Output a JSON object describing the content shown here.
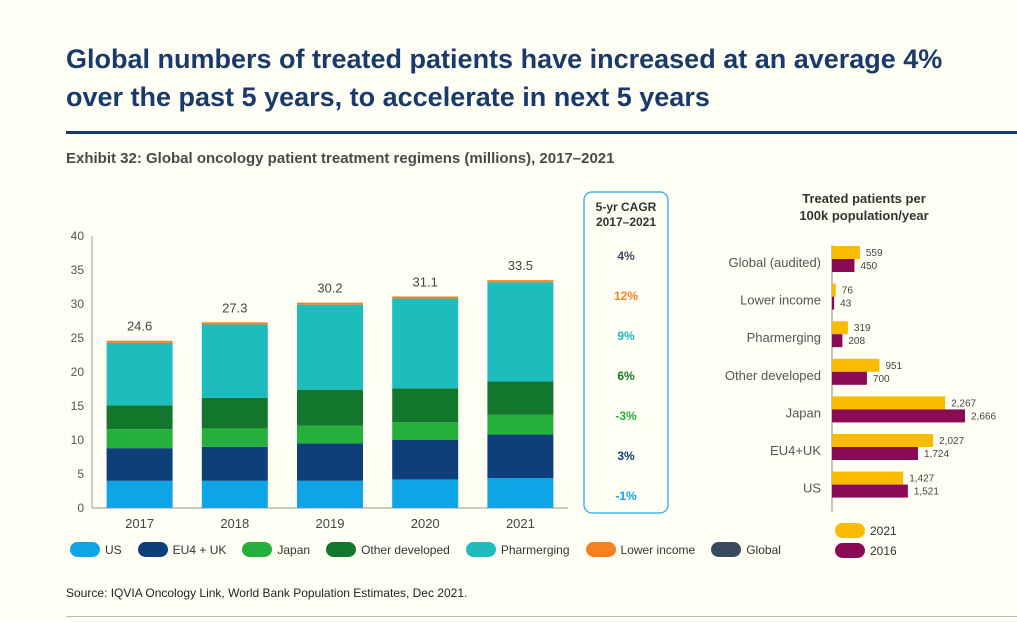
{
  "slide_title": "Global numbers of treated patients have increased at an average 4% over the past 5 years, to accelerate in next 5 years",
  "exhibit_title": "Exhibit 32: Global oncology patient treatment regimens (millions), 2017–2021",
  "source": "Source: IQVIA Oncology Link, World Bank Population Estimates, Dec 2021.",
  "colors": {
    "US": "#0da5e8",
    "EU4 + UK": "#0f3f78",
    "Japan": "#25b03c",
    "Other developed": "#12762c",
    "Pharmerging": "#1cbdbc",
    "Lower income": "#f58220",
    "Global": "#3a4a5e",
    "2021": "#f9bb00",
    "2016": "#8a0a55"
  },
  "chart_data": [
    {
      "type": "bar",
      "stacked": true,
      "categories": [
        "2017",
        "2018",
        "2019",
        "2020",
        "2021"
      ],
      "series": [
        {
          "name": "US",
          "values": [
            4.0,
            4.0,
            4.0,
            4.2,
            4.4
          ]
        },
        {
          "name": "EU4 + UK",
          "values": [
            4.8,
            5.0,
            5.5,
            5.8,
            6.4
          ]
        },
        {
          "name": "Japan",
          "values": [
            2.8,
            2.7,
            2.6,
            2.6,
            2.9
          ]
        },
        {
          "name": "Other developed",
          "values": [
            3.5,
            4.5,
            5.3,
            5.0,
            4.9
          ]
        },
        {
          "name": "Pharmerging",
          "values": [
            9.2,
            10.8,
            12.5,
            13.2,
            14.6
          ]
        },
        {
          "name": "Lower income",
          "values": [
            0.3,
            0.3,
            0.3,
            0.3,
            0.3
          ]
        }
      ],
      "totals": [
        "24.6",
        "27.3",
        "30.2",
        "31.1",
        "33.5"
      ],
      "ylim": [
        0,
        40
      ],
      "yticks": [
        "0",
        "5",
        "10",
        "15",
        "20",
        "25",
        "30",
        "35",
        "40"
      ],
      "legend_position": "bottom",
      "legend": [
        "US",
        "EU4 + UK",
        "Japan",
        "Other developed",
        "Pharmerging",
        "Lower income",
        "Global"
      ]
    },
    {
      "type": "table",
      "header": [
        "5-yr CAGR",
        "2017–2021"
      ],
      "rows": [
        {
          "label": "4%",
          "series": "Global"
        },
        {
          "label": "12%",
          "series": "Lower income"
        },
        {
          "label": "9%",
          "series": "Pharmerging"
        },
        {
          "label": "6%",
          "series": "Other developed"
        },
        {
          "label": "-3%",
          "series": "Japan"
        },
        {
          "label": "3%",
          "series": "EU4 + UK"
        },
        {
          "label": "-1%",
          "series": "US"
        }
      ]
    },
    {
      "type": "bar",
      "orientation": "horizontal",
      "title": [
        "Treated patients per",
        "100k population/year"
      ],
      "categories": [
        "Global (audited)",
        "Lower income",
        "Pharmerging",
        "Other developed",
        "Japan",
        "EU4+UK",
        "US"
      ],
      "series": [
        {
          "name": "2021",
          "values": [
            559,
            76,
            319,
            951,
            2267,
            2027,
            1427
          ],
          "labels": [
            "559",
            "76",
            "319",
            "951",
            "2,267",
            "2,027",
            "1,427"
          ]
        },
        {
          "name": "2016",
          "values": [
            450,
            43,
            208,
            700,
            2666,
            1724,
            1521
          ],
          "labels": [
            "450",
            "43",
            "208",
            "700",
            "2,666",
            "1,724",
            "1,521"
          ]
        }
      ],
      "xlim": [
        0,
        2666
      ],
      "legend_position": "bottom",
      "legend": [
        "2021",
        "2016"
      ]
    }
  ]
}
